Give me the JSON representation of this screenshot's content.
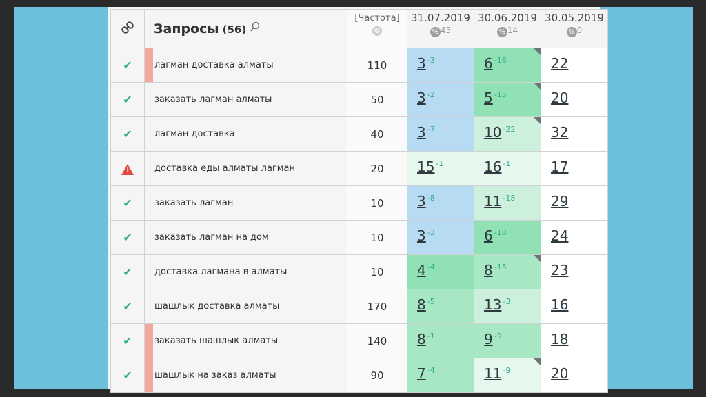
{
  "header": {
    "title": "Запросы",
    "count": "(56)",
    "freq_label": "[Частота]",
    "dates": [
      {
        "date": "31.07.2019",
        "pct": "43"
      },
      {
        "date": "30.06.2019",
        "pct": "14"
      },
      {
        "date": "30.05.2019",
        "pct": "0"
      }
    ]
  },
  "colors": {
    "blue": "#b7dbf2",
    "green_strong": "#90e2b5",
    "green": "#a7e7c4",
    "green_light": "#cdf0dc",
    "green_pale": "#e6f8ee",
    "marker_pink": "#f3a79e",
    "check": "#2fae88",
    "warning": "#e0483d"
  },
  "rows": [
    {
      "status": "check-icon",
      "marked": true,
      "query": "лагман доставка алматы",
      "freq": "110",
      "d1": {
        "pos": "3",
        "delta": "-3",
        "bg": "blue"
      },
      "d2": {
        "pos": "6",
        "delta": "-16",
        "bg": "g1",
        "corner": true
      },
      "d3": {
        "pos": "22"
      }
    },
    {
      "status": "check-icon",
      "marked": false,
      "query": "заказать лагман алматы",
      "freq": "50",
      "d1": {
        "pos": "3",
        "delta": "-2",
        "bg": "blue"
      },
      "d2": {
        "pos": "5",
        "delta": "-15",
        "bg": "g1",
        "corner": true
      },
      "d3": {
        "pos": "20"
      }
    },
    {
      "status": "check-icon",
      "marked": false,
      "query": "лагман доставка",
      "freq": "40",
      "d1": {
        "pos": "3",
        "delta": "-7",
        "bg": "blue"
      },
      "d2": {
        "pos": "10",
        "delta": "-22",
        "bg": "g3",
        "corner": true
      },
      "d3": {
        "pos": "32"
      }
    },
    {
      "status": "warning-icon",
      "marked": false,
      "query": "доставка еды алматы лагман",
      "freq": "20",
      "d1": {
        "pos": "15",
        "delta": "-1",
        "bg": "g4"
      },
      "d2": {
        "pos": "16",
        "delta": "-1",
        "bg": "g4"
      },
      "d3": {
        "pos": "17"
      }
    },
    {
      "status": "check-icon",
      "marked": false,
      "query": "заказать лагман",
      "freq": "10",
      "d1": {
        "pos": "3",
        "delta": "-8",
        "bg": "blue"
      },
      "d2": {
        "pos": "11",
        "delta": "-18",
        "bg": "g3"
      },
      "d3": {
        "pos": "29"
      }
    },
    {
      "status": "check-icon",
      "marked": false,
      "query": "заказать лагман на дом",
      "freq": "10",
      "d1": {
        "pos": "3",
        "delta": "-3",
        "bg": "blue"
      },
      "d2": {
        "pos": "6",
        "delta": "-18",
        "bg": "g1"
      },
      "d3": {
        "pos": "24"
      }
    },
    {
      "status": "check-icon",
      "marked": false,
      "query": "доставка лагмана в алматы",
      "freq": "10",
      "d1": {
        "pos": "4",
        "delta": "-4",
        "bg": "g1"
      },
      "d2": {
        "pos": "8",
        "delta": "-15",
        "bg": "g2",
        "corner": true
      },
      "d3": {
        "pos": "23"
      }
    },
    {
      "status": "check-icon",
      "marked": false,
      "query": "шашлык доставка алматы",
      "freq": "170",
      "d1": {
        "pos": "8",
        "delta": "-5",
        "bg": "g2"
      },
      "d2": {
        "pos": "13",
        "delta": "-3",
        "bg": "g3"
      },
      "d3": {
        "pos": "16"
      }
    },
    {
      "status": "check-icon",
      "marked": true,
      "query": "заказать шашлык алматы",
      "freq": "140",
      "d1": {
        "pos": "8",
        "delta": "-1",
        "bg": "g2"
      },
      "d2": {
        "pos": "9",
        "delta": "-9",
        "bg": "g2"
      },
      "d3": {
        "pos": "18"
      }
    },
    {
      "status": "check-icon",
      "marked": true,
      "query": "шашлык на заказ алматы",
      "freq": "90",
      "d1": {
        "pos": "7",
        "delta": "-4",
        "bg": "g2"
      },
      "d2": {
        "pos": "11",
        "delta": "-9",
        "bg": "g4",
        "corner": true
      },
      "d3": {
        "pos": "20"
      }
    }
  ]
}
